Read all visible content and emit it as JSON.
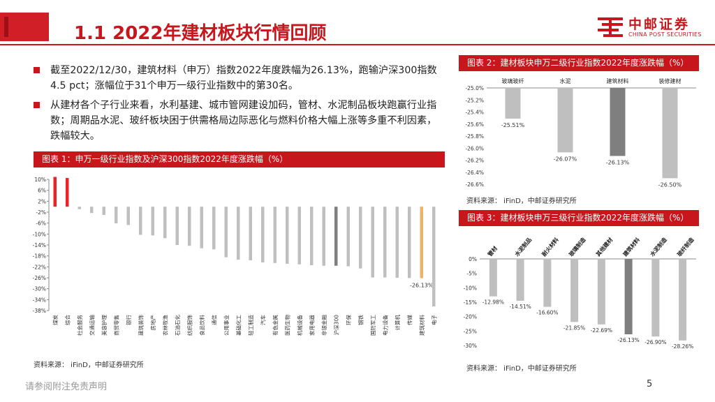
{
  "title": "1.1 2022年建材板块行情回顾",
  "logo": {
    "cn": "中邮证券",
    "en": "CHINA POST SECURITIES"
  },
  "bullets": [
    "截至2022/12/30，建筑材料（申万）指数2022年度跌幅为26.13%，跑输沪深300指数4.5 pct；涨幅位于31个申万一级行业指数中的第30名。",
    "从建材各个子行业来看，水利基建、城市管网建设加码，管材、水泥制品板块跑赢行业指数；周期品水泥、玻纤板块困于供需格局边际恶化与燃料价格大幅上涨等多重不利因素，跌幅较大。"
  ],
  "footer": {
    "disclaimer": "请参阅附注免责声明",
    "page": "5"
  },
  "colors": {
    "brand": "#c8161d",
    "highlight": "#f0b16b",
    "dark_bar": "#7f7f7f",
    "bar": "#bfbfbf"
  },
  "chart_data": [
    {
      "type": "bar",
      "title": "图表 1：申万一级行业指数及沪深300指数2022年度涨跌幅（%）",
      "source": "资料来源： iFinD，中邮证券研究所",
      "categories": [
        "煤炭",
        "综合",
        "社会服务",
        "交通运输",
        "美容护理",
        "商贸零售",
        "银行",
        "建筑装饰",
        "房地产",
        "农林牧渔",
        "石油石化",
        "纺织服饰",
        "食品饮料",
        "通信",
        "公用事业",
        "基础化工",
        "轻工制造",
        "汽车",
        "有色金属",
        "医药生物",
        "机械设备",
        "家用电器",
        "非银金融",
        "沪深300",
        "环保",
        "钢铁",
        "国防军工",
        "电力设备",
        "计算机",
        "传媒",
        "建筑材料",
        "电子"
      ],
      "values": [
        10.9,
        10.5,
        -0.9,
        -2.3,
        -3.0,
        -6.1,
        -6.7,
        -10.3,
        -10.5,
        -11.5,
        -14.0,
        -14.3,
        -15.2,
        -15.6,
        -18.5,
        -19.4,
        -19.6,
        -20.4,
        -20.6,
        -20.9,
        -21.1,
        -21.4,
        -21.6,
        -21.6,
        -21.8,
        -22.6,
        -25.9,
        -25.9,
        -26.0,
        -26.1,
        -26.13,
        -36.5
      ],
      "highlight_label": "-26.13%",
      "ylim": [
        -38,
        10
      ],
      "yticks": [
        "10%",
        "6%",
        "2%",
        "-2%",
        "-6%",
        "-10%",
        "-14%",
        "-18%",
        "-22%",
        "-26%",
        "-30%",
        "-34%",
        "-38%"
      ]
    },
    {
      "type": "bar",
      "title": "图表 2：建材板块申万二级行业指数2022年度涨跌幅（%）",
      "source": "资料来源： iFinD，中邮证券研究所",
      "categories": [
        "玻璃玻纤",
        "水泥",
        "建筑材料",
        "装修建材"
      ],
      "values": [
        -25.51,
        -26.07,
        -26.13,
        -26.5
      ],
      "labels": [
        "-25.51%",
        "-26.07%",
        "-26.13%",
        "-26.50%"
      ],
      "ylim": [
        -26.6,
        -25.0
      ],
      "yticks": [
        "-25.0%",
        "-25.2%",
        "-25.4%",
        "-25.6%",
        "-25.8%",
        "-26.0%",
        "-26.2%",
        "-26.4%",
        "-26.6%"
      ]
    },
    {
      "type": "bar",
      "title": "图表 3：建材板块申万三级行业指数2022年度涨跌幅（%）",
      "source": "资料来源： iFinD，中邮证券研究所",
      "categories": [
        "管材",
        "水泥制品",
        "耐火材料",
        "玻璃制造",
        "其他建材",
        "建筑材料",
        "水泥制造",
        "玻纤制造"
      ],
      "values": [
        -12.98,
        -14.51,
        -16.6,
        -21.85,
        -22.69,
        -26.13,
        -26.9,
        -28.26
      ],
      "labels": [
        "-12.98%",
        "-14.51%",
        "-16.60%",
        "-21.85%",
        "-22.69%",
        "-26.13%",
        "-26.90%",
        "-28.26%"
      ],
      "ylim": [
        -30,
        0
      ],
      "yticks": [
        "0%",
        "-5%",
        "-10%",
        "-15%",
        "-20%",
        "-25%",
        "-30%"
      ]
    }
  ]
}
